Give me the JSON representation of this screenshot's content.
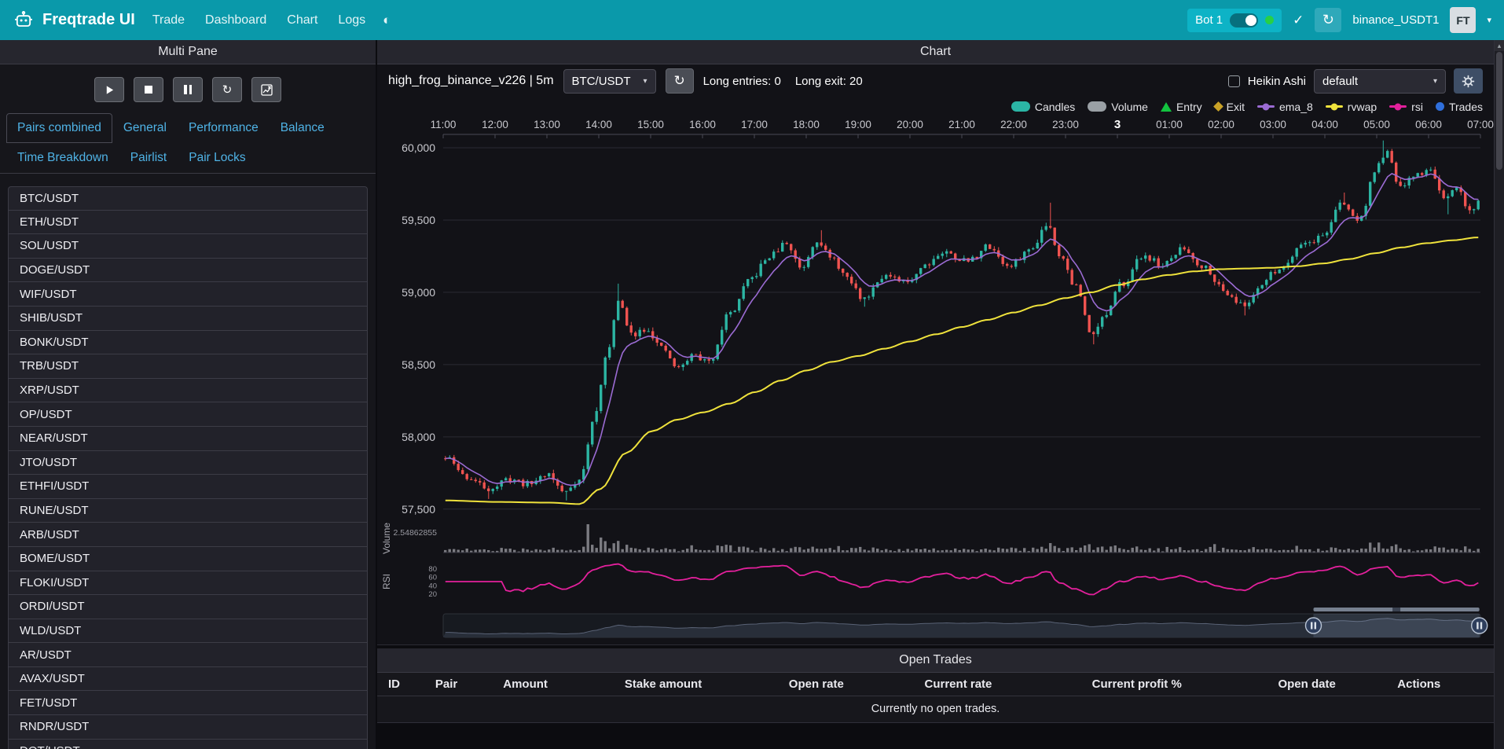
{
  "icons": {
    "theme_toggle": "◐",
    "caret": "▾",
    "check": "✓",
    "refresh": "↻",
    "scroll_up": "▴"
  },
  "navbar": {
    "brand": "Freqtrade UI",
    "links": [
      "Trade",
      "Dashboard",
      "Chart",
      "Logs"
    ],
    "bot": {
      "name": "Bot 1"
    },
    "exchange_label": "binance_USDT1",
    "avatar_initials": "FT"
  },
  "left_panel": {
    "title": "Multi Pane",
    "tabs": [
      "Pairs combined",
      "General",
      "Performance",
      "Balance",
      "Time Breakdown",
      "Pairlist",
      "Pair Locks"
    ],
    "active_tab": "Pairs combined",
    "pairs": [
      "BTC/USDT",
      "ETH/USDT",
      "SOL/USDT",
      "DOGE/USDT",
      "WIF/USDT",
      "SHIB/USDT",
      "BONK/USDT",
      "TRB/USDT",
      "XRP/USDT",
      "OP/USDT",
      "NEAR/USDT",
      "JTO/USDT",
      "ETHFI/USDT",
      "RUNE/USDT",
      "ARB/USDT",
      "BOME/USDT",
      "FLOKI/USDT",
      "ORDI/USDT",
      "WLD/USDT",
      "AR/USDT",
      "AVAX/USDT",
      "FET/USDT",
      "RNDR/USDT",
      "DOT/USDT"
    ]
  },
  "chart_panel": {
    "title": "Chart",
    "strategy_label": "high_frog_binance_v226 | 5m",
    "pair_select_value": "BTC/USDT",
    "stats": [
      "Long entries: 0",
      "Long exit: 20"
    ],
    "heikin_ashi_label": "Heikin Ashi",
    "theme_select_value": "default",
    "legend": [
      {
        "label": "Candles",
        "shape": "pill",
        "color": "#2bb5a5"
      },
      {
        "label": "Volume",
        "shape": "pill",
        "color": "#9aa0a5"
      },
      {
        "label": "Entry",
        "shape": "triangle",
        "color": "#12c33f"
      },
      {
        "label": "Exit",
        "shape": "diamond",
        "color": "#c9a227"
      },
      {
        "label": "ema_8",
        "shape": "linedot",
        "color": "#9b6bd3"
      },
      {
        "label": "rvwap",
        "shape": "linedot",
        "color": "#efe23c"
      },
      {
        "label": "rsi",
        "shape": "linedot",
        "color": "#e3209c"
      },
      {
        "label": "Trades",
        "shape": "dot",
        "color": "#2f6fdb"
      }
    ]
  },
  "chart_data": {
    "type": "candlestick",
    "timeframe": "5m",
    "candle_count": 240,
    "seed": 11,
    "x_tick_labels": [
      "11:00",
      "12:00",
      "13:00",
      "14:00",
      "15:00",
      "16:00",
      "17:00",
      "18:00",
      "19:00",
      "20:00",
      "21:00",
      "22:00",
      "23:00",
      "3",
      "01:00",
      "02:00",
      "03:00",
      "04:00",
      "05:00",
      "06:00",
      "07:00"
    ],
    "bold_tick": "3",
    "y_ticks": [
      60000,
      59500,
      59000,
      58500,
      58000,
      57500
    ],
    "y_tick_labels": [
      "60,000",
      "59,500",
      "59,000",
      "58,500",
      "58,000",
      "57,500"
    ],
    "ylim": [
      57450,
      60060
    ],
    "price_anchors": [
      [
        0,
        57850
      ],
      [
        0.4,
        57730
      ],
      [
        0.8,
        57640
      ],
      [
        1.2,
        57700
      ],
      [
        1.6,
        57680
      ],
      [
        2.0,
        57740
      ],
      [
        2.3,
        57620
      ],
      [
        2.6,
        57700
      ],
      [
        2.9,
        58150
      ],
      [
        3.1,
        58520
      ],
      [
        3.35,
        58950
      ],
      [
        3.6,
        58700
      ],
      [
        3.9,
        58760
      ],
      [
        4.2,
        58600
      ],
      [
        4.5,
        58480
      ],
      [
        4.8,
        58560
      ],
      [
        5.1,
        58520
      ],
      [
        5.5,
        58850
      ],
      [
        5.9,
        59080
      ],
      [
        6.3,
        59260
      ],
      [
        6.6,
        59330
      ],
      [
        6.9,
        59180
      ],
      [
        7.2,
        59360
      ],
      [
        7.5,
        59230
      ],
      [
        7.8,
        59080
      ],
      [
        8.1,
        58960
      ],
      [
        8.5,
        59120
      ],
      [
        8.9,
        59060
      ],
      [
        9.3,
        59200
      ],
      [
        9.7,
        59280
      ],
      [
        10.1,
        59210
      ],
      [
        10.5,
        59320
      ],
      [
        10.9,
        59180
      ],
      [
        11.3,
        59280
      ],
      [
        11.65,
        59480
      ],
      [
        11.9,
        59260
      ],
      [
        12.2,
        59050
      ],
      [
        12.5,
        58720
      ],
      [
        12.8,
        58850
      ],
      [
        13.1,
        59060
      ],
      [
        13.5,
        59250
      ],
      [
        13.9,
        59190
      ],
      [
        14.3,
        59300
      ],
      [
        14.7,
        59170
      ],
      [
        15.1,
        59010
      ],
      [
        15.45,
        58900
      ],
      [
        15.8,
        59060
      ],
      [
        16.2,
        59180
      ],
      [
        16.6,
        59340
      ],
      [
        17.0,
        59390
      ],
      [
        17.35,
        59620
      ],
      [
        17.7,
        59490
      ],
      [
        18.0,
        59840
      ],
      [
        18.2,
        59960
      ],
      [
        18.5,
        59730
      ],
      [
        18.8,
        59810
      ],
      [
        19.1,
        59850
      ],
      [
        19.35,
        59620
      ],
      [
        19.6,
        59720
      ],
      [
        19.85,
        59560
      ],
      [
        20,
        59620
      ]
    ],
    "vwap_anchors": [
      [
        0,
        57560
      ],
      [
        1,
        57550
      ],
      [
        2,
        57545
      ],
      [
        2.6,
        57535
      ],
      [
        3,
        57640
      ],
      [
        3.5,
        57890
      ],
      [
        4,
        58040
      ],
      [
        4.5,
        58120
      ],
      [
        5,
        58170
      ],
      [
        5.5,
        58230
      ],
      [
        6,
        58310
      ],
      [
        6.5,
        58390
      ],
      [
        7,
        58460
      ],
      [
        7.5,
        58520
      ],
      [
        8,
        58560
      ],
      [
        8.5,
        58610
      ],
      [
        9,
        58660
      ],
      [
        9.5,
        58710
      ],
      [
        10,
        58760
      ],
      [
        10.5,
        58810
      ],
      [
        11,
        58860
      ],
      [
        11.5,
        58910
      ],
      [
        12,
        58960
      ],
      [
        12.5,
        59000
      ],
      [
        13,
        59050
      ],
      [
        13.5,
        59090
      ],
      [
        14,
        59120
      ],
      [
        14.5,
        59145
      ],
      [
        15,
        59160
      ],
      [
        15.5,
        59165
      ],
      [
        16,
        59170
      ],
      [
        16.5,
        59180
      ],
      [
        17,
        59200
      ],
      [
        17.5,
        59230
      ],
      [
        18,
        59270
      ],
      [
        18.5,
        59310
      ],
      [
        19,
        59340
      ],
      [
        19.5,
        59360
      ],
      [
        20,
        59380
      ]
    ],
    "wick_highs": [
      [
        3.35,
        59060
      ],
      [
        6.55,
        59360
      ],
      [
        7.25,
        59430
      ],
      [
        11.7,
        59620
      ],
      [
        17.4,
        59690
      ],
      [
        18.15,
        60050
      ]
    ],
    "wick_lows": [
      [
        0.8,
        57570
      ],
      [
        2.35,
        57560
      ],
      [
        8.15,
        58900
      ],
      [
        12.55,
        58640
      ],
      [
        15.5,
        58840
      ],
      [
        19.4,
        59540
      ]
    ],
    "volume_spikes": [
      [
        2.75,
        2.5486
      ],
      [
        3.05,
        1.35
      ],
      [
        3.35,
        1.05
      ],
      [
        5.55,
        0.65
      ],
      [
        8.0,
        0.5
      ],
      [
        11.7,
        0.85
      ],
      [
        12.5,
        0.75
      ],
      [
        14.0,
        0.5
      ],
      [
        16.5,
        0.6
      ],
      [
        18.05,
        0.9
      ],
      [
        19.2,
        0.55
      ]
    ],
    "zoom_window": [
      0.839,
      0.999
    ],
    "volume_axis_label": "2.54862855",
    "volume_label": "Volume",
    "rsi_label": "RSI",
    "rsi_ticks": [
      80,
      60,
      40,
      20
    ],
    "colors": {
      "up": "#2cb5a3",
      "down": "#ef5350",
      "ema": "#9b6bd3",
      "vwap": "#efe23c",
      "rsi": "#e3209c",
      "volume": "#8e8e94"
    }
  },
  "open_trades": {
    "title": "Open Trades",
    "columns": [
      "ID",
      "Pair",
      "Amount",
      "Stake amount",
      "Open rate",
      "Current rate",
      "Current profit %",
      "Open date",
      "Actions"
    ],
    "empty_message": "Currently no open trades."
  }
}
